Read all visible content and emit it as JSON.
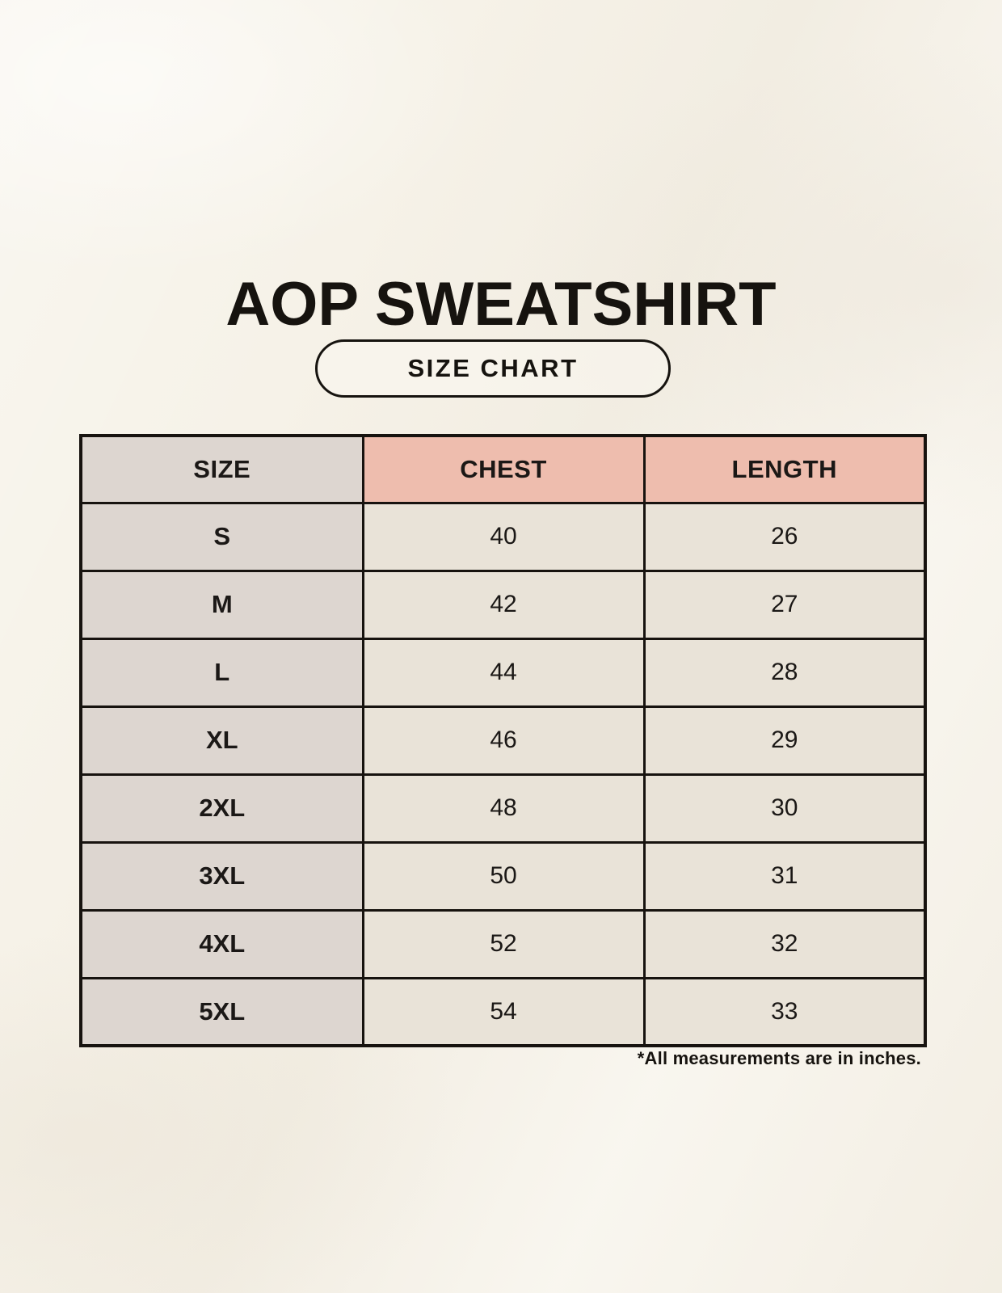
{
  "page": {
    "title": "AOP SWEATSHIRT",
    "badge_label": "SIZE CHART",
    "footnote": "*All measurements are in inches."
  },
  "colors": {
    "page_background": "#F6F2E8",
    "accent_pink": "#EEBDAE",
    "size_column_gray": "#DDD6D0",
    "value_cell_beige": "#E9E3D8",
    "border_black": "#17130F",
    "text_black": "#16130F"
  },
  "chart_data": {
    "type": "table",
    "title": "AOP SWEATSHIRT",
    "subtitle": "SIZE CHART",
    "columns": [
      "SIZE",
      "CHEST",
      "LENGTH"
    ],
    "rows": [
      [
        "S",
        40,
        26
      ],
      [
        "M",
        42,
        27
      ],
      [
        "L",
        44,
        28
      ],
      [
        "XL",
        46,
        29
      ],
      [
        "2XL",
        48,
        30
      ],
      [
        "3XL",
        50,
        31
      ],
      [
        "4XL",
        52,
        32
      ],
      [
        "5XL",
        54,
        33
      ]
    ],
    "units": "inches",
    "note": "*All measurements are in inches."
  },
  "table": {
    "headers": [
      "SIZE",
      "CHEST",
      "LENGTH"
    ],
    "rows": [
      {
        "size": "S",
        "chest": "40",
        "length": "26"
      },
      {
        "size": "M",
        "chest": "42",
        "length": "27"
      },
      {
        "size": "L",
        "chest": "44",
        "length": "28"
      },
      {
        "size": "XL",
        "chest": "46",
        "length": "29"
      },
      {
        "size": "2XL",
        "chest": "48",
        "length": "30"
      },
      {
        "size": "3XL",
        "chest": "50",
        "length": "31"
      },
      {
        "size": "4XL",
        "chest": "52",
        "length": "32"
      },
      {
        "size": "5XL",
        "chest": "54",
        "length": "33"
      }
    ]
  }
}
